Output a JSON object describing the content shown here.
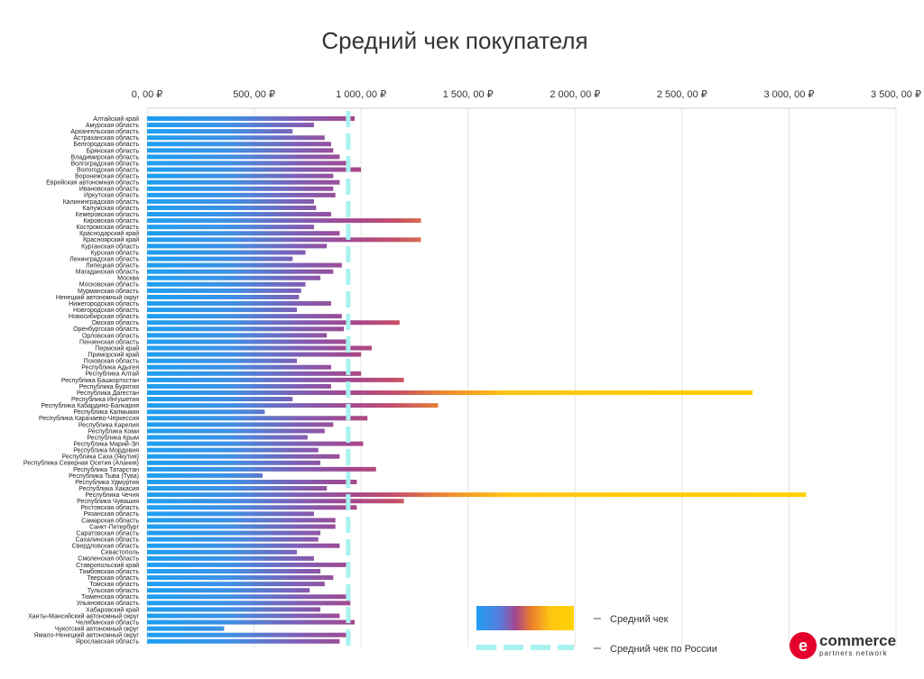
{
  "chart_data": {
    "type": "bar",
    "orientation": "horizontal",
    "title": "Средний чек покупателя",
    "xlabel": "",
    "ylabel": "",
    "xlim": [
      0,
      3500
    ],
    "grid": true,
    "x_axis_position": "top",
    "ticks": [
      {
        "value": 0,
        "label": "0, 00 ₽"
      },
      {
        "value": 500,
        "label": "500, 00 ₽"
      },
      {
        "value": 1000,
        "label": "1 000, 00 ₽"
      },
      {
        "value": 1500,
        "label": "1 500, 00 ₽"
      },
      {
        "value": 2000,
        "label": "2 000, 00 ₽"
      },
      {
        "value": 2500,
        "label": "2 500, 00 ₽"
      },
      {
        "value": 3000,
        "label": "3 000, 00 ₽"
      },
      {
        "value": 3500,
        "label": "3 500, 00 ₽"
      }
    ],
    "reference_line": {
      "name": "Средний чек по России",
      "value": 940
    },
    "series": [
      {
        "name": "Средний чек",
        "gradient_colors": [
          "#1E9FF2",
          "#A2488F",
          "#FFD400"
        ]
      }
    ],
    "categories": [
      "Алтайский край",
      "Амурская область",
      "Архангельская область",
      "Астраханская область",
      "Белгородская область",
      "Брянская область",
      "Владимирская область",
      "Волгоградская область",
      "Вологодская область",
      "Воронежская область",
      "Еврейская автономная область",
      "Ивановская область",
      "Иркутская область",
      "Калининградская область",
      "Калужская область",
      "Кемеровская область",
      "Кировская область",
      "Костромская область",
      "Краснодарский край",
      "Красноярский край",
      "Курганская область",
      "Курская область",
      "Ленинградская область",
      "Липецкая область",
      "Магаданская область",
      "Москва",
      "Московская область",
      "Мурманская область",
      "Ненецкий автономный округ",
      "Нижегородская область",
      "Новгородская область",
      "Новосибирская область",
      "Омская область",
      "Оренбургская область",
      "Орловская область",
      "Пензенская область",
      "Пермский край",
      "Приморский край",
      "Псковская область",
      "Республика Адыгея",
      "Республика Алтай",
      "Республика Башкортостан",
      "Республика Бурятия",
      "Республика Дагестан",
      "Республика Ингушетия",
      "Республика Кабардино-Балкария",
      "Республика Калмыкия",
      "Республика Карачаево-Черкессия",
      "Республика Карелия",
      "Республика Коми",
      "Республика Крым",
      "Республика Марий-Эл",
      "Республика Мордовия",
      "Республика Саха (Якутия)",
      "Республика Северная Осетия (Алания)",
      "Республика Татарстан",
      "Республика Тыва (Тува)",
      "Республика Удмуртия",
      "Республика Хакасия",
      "Республика Чечня",
      "Республика Чувашия",
      "Ростовская область",
      "Рязанская область",
      "Самарская область",
      "Санкт-Петербург",
      "Саратовская область",
      "Сахалинская область",
      "Свердловская область",
      "Севастополь",
      "Смоленская область",
      "Ставропольский край",
      "Тамбовская область",
      "Тверская область",
      "Томская область",
      "Тульская область",
      "Тюменская область",
      "Ульяновская область",
      "Хабаровский край",
      "Ханты-Мансийский автономный округ",
      "Челябинская область",
      "Чукотский автономный округ",
      "Ямало-Ненецкий автономный округ",
      "Ярославская область"
    ],
    "values": [
      970,
      780,
      680,
      830,
      860,
      870,
      900,
      950,
      1000,
      870,
      900,
      870,
      880,
      780,
      790,
      860,
      1280,
      780,
      900,
      1280,
      840,
      740,
      680,
      910,
      870,
      810,
      740,
      720,
      710,
      860,
      700,
      910,
      1180,
      920,
      840,
      930,
      1050,
      1000,
      700,
      860,
      1000,
      1200,
      860,
      2830,
      680,
      1360,
      550,
      1030,
      870,
      830,
      750,
      1010,
      800,
      900,
      810,
      1070,
      540,
      980,
      840,
      3080,
      1200,
      980,
      780,
      880,
      880,
      810,
      800,
      900,
      700,
      780,
      930,
      810,
      870,
      830,
      760,
      930,
      950,
      810,
      900,
      970,
      360,
      950,
      900
    ]
  },
  "legend": {
    "series_label": "Средний чек",
    "reference_label": "Средний чек по России"
  },
  "logo": {
    "letter": "e",
    "word": "commerce",
    "subtitle": "partners network",
    "color": "#E4002B"
  }
}
